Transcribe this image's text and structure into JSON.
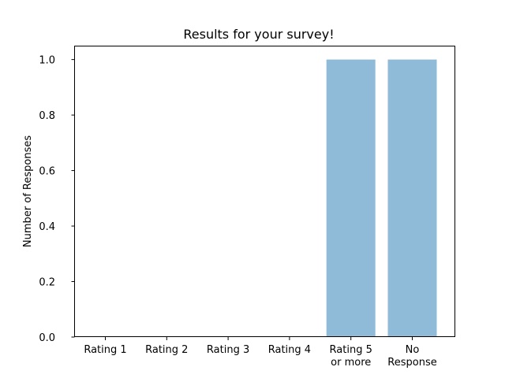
{
  "chart_data": {
    "type": "bar",
    "title": "Results for your survey!",
    "xlabel": "",
    "ylabel": "Number of Responses",
    "categories": [
      [
        "Rating 1"
      ],
      [
        "Rating 2"
      ],
      [
        "Rating 3"
      ],
      [
        "Rating 4"
      ],
      [
        "Rating 5",
        "or more"
      ],
      [
        "No",
        "Response"
      ]
    ],
    "values": [
      0,
      0,
      0,
      0,
      1,
      1
    ],
    "ylim": [
      0,
      1.05
    ],
    "yticks": [
      "0.0",
      "0.2",
      "0.4",
      "0.6",
      "0.8",
      "1.0"
    ],
    "ytick_values": [
      0,
      0.2,
      0.4,
      0.6,
      0.8,
      1.0
    ],
    "bar_color": "#1f77b4",
    "bar_alpha": 0.5,
    "grid": false,
    "legend": "none"
  }
}
